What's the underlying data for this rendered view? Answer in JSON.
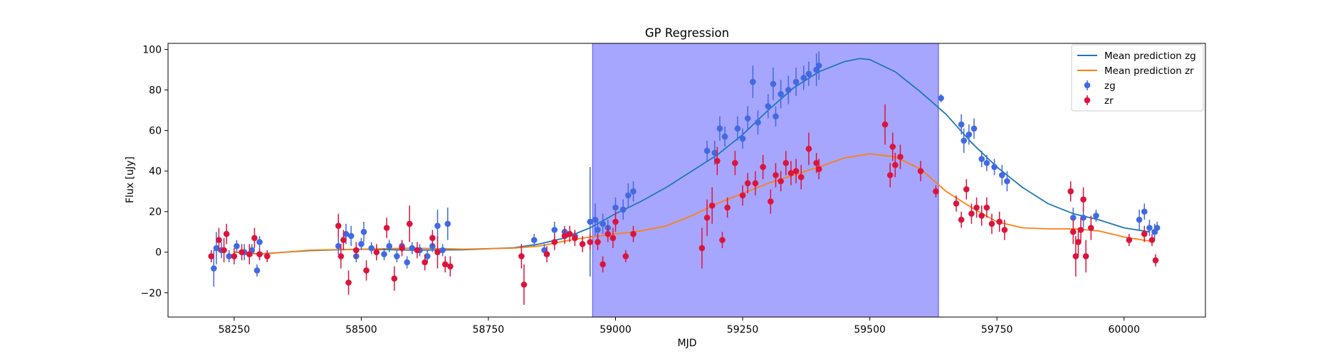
{
  "chart_data": {
    "type": "scatter",
    "title": "GP Regression",
    "xlabel": "MJD",
    "ylabel": "Flux [uJy]",
    "xlim": [
      58120,
      60160
    ],
    "ylim": [
      -32,
      103
    ],
    "xticks": [
      58250,
      58500,
      58750,
      59000,
      59250,
      59500,
      59750,
      60000
    ],
    "yticks": [
      -20,
      0,
      20,
      40,
      60,
      80,
      100
    ],
    "grid": false,
    "legend_position": "top-right",
    "shaded_region": {
      "x0": 58955,
      "x1": 59635,
      "color": "#0000ff",
      "alpha": 0.35
    },
    "lines": [
      {
        "name": "Mean prediction zg",
        "color": "#1f77b4",
        "x": [
          58250,
          58300,
          58400,
          58500,
          58600,
          58700,
          58800,
          58850,
          58900,
          58950,
          59000,
          59050,
          59100,
          59150,
          59200,
          59250,
          59300,
          59350,
          59400,
          59450,
          59480,
          59500,
          59550,
          59600,
          59650,
          59700,
          59750,
          59800,
          59850,
          59900,
          59950,
          60000,
          60050
        ],
        "y": [
          0,
          -0.8,
          0.8,
          1.5,
          1.0,
          1.2,
          2.2,
          4.0,
          7.0,
          12.0,
          19.0,
          25.0,
          32.0,
          40.0,
          48.0,
          58.0,
          70.0,
          81.0,
          89.0,
          94.0,
          95.5,
          95.0,
          89.0,
          79.0,
          68.0,
          54.0,
          42.0,
          32.0,
          24.0,
          19.0,
          16.0,
          12.0,
          10.0
        ]
      },
      {
        "name": "Mean prediction zr",
        "color": "#ff7f0e",
        "x": [
          58250,
          58300,
          58400,
          58500,
          58600,
          58700,
          58800,
          58850,
          58900,
          58950,
          59000,
          59050,
          59100,
          59150,
          59200,
          59250,
          59300,
          59350,
          59400,
          59450,
          59500,
          59550,
          59600,
          59650,
          59700,
          59750,
          59800,
          59850,
          59900,
          59950,
          60000,
          60050
        ],
        "y": [
          0,
          -1.0,
          1.0,
          1.5,
          2.0,
          1.5,
          2.0,
          3.0,
          5.5,
          7.5,
          9.0,
          10.5,
          13.0,
          18.0,
          24.0,
          29.0,
          34.0,
          38.0,
          42.0,
          46.5,
          48.5,
          47.0,
          41.0,
          30.0,
          22.0,
          15.0,
          12.0,
          11.5,
          11.5,
          10.5,
          7.5,
          5.5
        ]
      }
    ],
    "series": [
      {
        "name": "zg",
        "color": "#4169e1",
        "points": [
          [
            58210,
            -8,
            9
          ],
          [
            58215,
            2,
            8
          ],
          [
            58225,
            1,
            4
          ],
          [
            58240,
            -2,
            3
          ],
          [
            58255,
            3,
            3
          ],
          [
            58270,
            0,
            4
          ],
          [
            58285,
            1,
            3
          ],
          [
            58295,
            -9,
            3
          ],
          [
            58300,
            5,
            3
          ],
          [
            58455,
            3,
            4
          ],
          [
            58470,
            9,
            5
          ],
          [
            58480,
            8,
            5
          ],
          [
            58490,
            -2,
            3
          ],
          [
            58500,
            4,
            3
          ],
          [
            58505,
            10,
            5
          ],
          [
            58520,
            2,
            3
          ],
          [
            58545,
            -1,
            3
          ],
          [
            58555,
            3,
            3
          ],
          [
            58570,
            -2,
            3
          ],
          [
            58580,
            3,
            3
          ],
          [
            58590,
            -5,
            3
          ],
          [
            58600,
            2,
            3
          ],
          [
            58615,
            1,
            3
          ],
          [
            58630,
            -2,
            3
          ],
          [
            58640,
            3,
            3
          ],
          [
            58650,
            13,
            8
          ],
          [
            58660,
            1,
            3
          ],
          [
            58670,
            14,
            8
          ],
          [
            58840,
            6,
            3
          ],
          [
            58860,
            1,
            3
          ],
          [
            58880,
            11,
            4
          ],
          [
            58900,
            10,
            3
          ],
          [
            58920,
            8,
            3
          ],
          [
            58950,
            15,
            27
          ],
          [
            58960,
            16,
            8
          ],
          [
            58965,
            11,
            5
          ],
          [
            58975,
            14,
            5
          ],
          [
            58985,
            12,
            4
          ],
          [
            59000,
            22,
            5
          ],
          [
            59015,
            21,
            5
          ],
          [
            59025,
            28,
            6
          ],
          [
            59035,
            30,
            5
          ],
          [
            59180,
            50,
            5
          ],
          [
            59195,
            49,
            6
          ],
          [
            59205,
            61,
            6
          ],
          [
            59215,
            57,
            5
          ],
          [
            59240,
            61,
            6
          ],
          [
            59250,
            56,
            5
          ],
          [
            59260,
            66,
            6
          ],
          [
            59270,
            84,
            8
          ],
          [
            59280,
            64,
            6
          ],
          [
            59300,
            72,
            6
          ],
          [
            59310,
            83,
            8
          ],
          [
            59315,
            67,
            5
          ],
          [
            59325,
            78,
            7
          ],
          [
            59340,
            80,
            7
          ],
          [
            59355,
            84,
            7
          ],
          [
            59370,
            86,
            6
          ],
          [
            59380,
            88,
            6
          ],
          [
            59395,
            90,
            8
          ],
          [
            59400,
            92,
            7
          ],
          [
            59640,
            76,
            2
          ],
          [
            59680,
            63,
            5
          ],
          [
            59685,
            55,
            6
          ],
          [
            59695,
            58,
            5
          ],
          [
            59705,
            61,
            5
          ],
          [
            59720,
            46,
            4
          ],
          [
            59730,
            44,
            4
          ],
          [
            59745,
            42,
            4
          ],
          [
            59760,
            38,
            5
          ],
          [
            59770,
            35,
            5
          ],
          [
            59900,
            17,
            5
          ],
          [
            59920,
            17,
            5
          ],
          [
            59945,
            18,
            3
          ],
          [
            60030,
            16,
            5
          ],
          [
            60040,
            20,
            4
          ],
          [
            60050,
            12,
            4
          ],
          [
            60060,
            10,
            4
          ],
          [
            60065,
            12,
            3
          ]
        ]
      },
      {
        "name": "zr",
        "color": "#dc143c",
        "points": [
          [
            58205,
            -2,
            3
          ],
          [
            58220,
            6,
            6
          ],
          [
            58230,
            1,
            6
          ],
          [
            58235,
            9,
            5
          ],
          [
            58250,
            -2,
            4
          ],
          [
            58265,
            0,
            4
          ],
          [
            58280,
            -1,
            5
          ],
          [
            58290,
            7,
            5
          ],
          [
            58300,
            -1,
            3
          ],
          [
            58315,
            -2,
            3
          ],
          [
            58455,
            13,
            6
          ],
          [
            58460,
            -2,
            6
          ],
          [
            58465,
            6,
            5
          ],
          [
            58475,
            -15,
            6
          ],
          [
            58490,
            1,
            4
          ],
          [
            58510,
            -9,
            5
          ],
          [
            58530,
            0,
            4
          ],
          [
            58550,
            12,
            5
          ],
          [
            58565,
            -13,
            6
          ],
          [
            58580,
            2,
            4
          ],
          [
            58595,
            14,
            9
          ],
          [
            58610,
            1,
            4
          ],
          [
            58625,
            -5,
            4
          ],
          [
            58640,
            7,
            4
          ],
          [
            58650,
            0,
            8
          ],
          [
            58665,
            -6,
            4
          ],
          [
            58675,
            -7,
            5
          ],
          [
            58815,
            -2,
            6
          ],
          [
            58820,
            -16,
            10
          ],
          [
            58865,
            -1,
            4
          ],
          [
            58880,
            5,
            4
          ],
          [
            58900,
            8,
            4
          ],
          [
            58910,
            9,
            4
          ],
          [
            58920,
            7,
            4
          ],
          [
            58935,
            4,
            4
          ],
          [
            58950,
            5,
            4
          ],
          [
            58965,
            5,
            4
          ],
          [
            58975,
            -6,
            4
          ],
          [
            58985,
            9,
            4
          ],
          [
            58995,
            7,
            5
          ],
          [
            59000,
            15,
            5
          ],
          [
            59020,
            -2,
            3
          ],
          [
            59035,
            9,
            4
          ],
          [
            59170,
            2,
            10
          ],
          [
            59180,
            17,
            9
          ],
          [
            59190,
            23,
            9
          ],
          [
            59200,
            45,
            7
          ],
          [
            59210,
            6,
            4
          ],
          [
            59220,
            22,
            5
          ],
          [
            59235,
            44,
            6
          ],
          [
            59250,
            28,
            5
          ],
          [
            59260,
            34,
            5
          ],
          [
            59275,
            34,
            6
          ],
          [
            59290,
            42,
            6
          ],
          [
            59305,
            25,
            6
          ],
          [
            59315,
            38,
            6
          ],
          [
            59325,
            35,
            5
          ],
          [
            59335,
            44,
            6
          ],
          [
            59345,
            39,
            6
          ],
          [
            59355,
            40,
            6
          ],
          [
            59365,
            37,
            6
          ],
          [
            59380,
            51,
            8
          ],
          [
            59395,
            44,
            5
          ],
          [
            59400,
            41,
            5
          ],
          [
            59530,
            63,
            10
          ],
          [
            59540,
            38,
            6
          ],
          [
            59545,
            52,
            7
          ],
          [
            59550,
            43,
            6
          ],
          [
            59560,
            47,
            6
          ],
          [
            59600,
            40,
            5
          ],
          [
            59630,
            30,
            3
          ],
          [
            59670,
            24,
            4
          ],
          [
            59680,
            16,
            4
          ],
          [
            59690,
            31,
            5
          ],
          [
            59700,
            19,
            5
          ],
          [
            59710,
            22,
            5
          ],
          [
            59720,
            18,
            5
          ],
          [
            59730,
            22,
            5
          ],
          [
            59740,
            14,
            5
          ],
          [
            59755,
            15,
            5
          ],
          [
            59765,
            11,
            5
          ],
          [
            59895,
            30,
            5
          ],
          [
            59900,
            10,
            6
          ],
          [
            59905,
            -2,
            10
          ],
          [
            59910,
            5,
            7
          ],
          [
            59915,
            11,
            6
          ],
          [
            59920,
            26,
            6
          ],
          [
            59925,
            -2,
            8
          ],
          [
            59935,
            12,
            6
          ],
          [
            60010,
            6,
            3
          ],
          [
            60040,
            9,
            4
          ],
          [
            60055,
            6,
            3
          ],
          [
            60062,
            -4,
            3
          ]
        ]
      }
    ]
  }
}
